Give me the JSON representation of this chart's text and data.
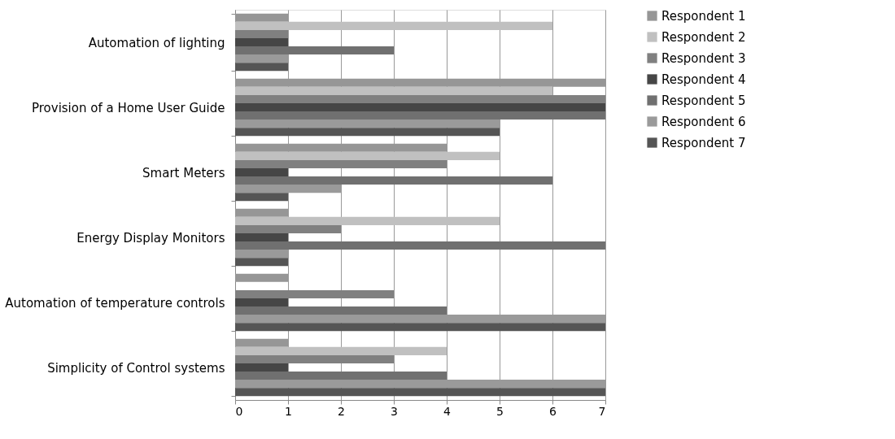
{
  "chart_data": {
    "type": "bar",
    "orientation": "horizontal",
    "categories": [
      "Automation of lighting",
      "Provision of a Home User Guide",
      "Smart Meters",
      "Energy Display Monitors",
      "Automation of temperature controls",
      "Simplicity of Control systems"
    ],
    "series": [
      {
        "name": "Respondent 1",
        "color": "#969696",
        "values": [
          1,
          7,
          4,
          1,
          1,
          1
        ]
      },
      {
        "name": "Respondent 2",
        "color": "#c0c0c0",
        "values": [
          6,
          6,
          5,
          5,
          0,
          4
        ]
      },
      {
        "name": "Respondent 3",
        "color": "#808080",
        "values": [
          1,
          7,
          4,
          2,
          3,
          3
        ]
      },
      {
        "name": "Respondent 4",
        "color": "#464646",
        "values": [
          1,
          7,
          1,
          1,
          1,
          1
        ]
      },
      {
        "name": "Respondent 5",
        "color": "#707070",
        "values": [
          3,
          7,
          6,
          7,
          4,
          4
        ]
      },
      {
        "name": "Respondent 6",
        "color": "#9a9a9a",
        "values": [
          1,
          5,
          2,
          1,
          7,
          7
        ]
      },
      {
        "name": "Respondent 7",
        "color": "#555555",
        "values": [
          1,
          5,
          1,
          1,
          7,
          7
        ]
      }
    ],
    "xlim": [
      0,
      7
    ],
    "xticks": [
      0,
      1,
      2,
      3,
      4,
      5,
      6,
      7
    ],
    "grid": "x",
    "legend": "right"
  }
}
